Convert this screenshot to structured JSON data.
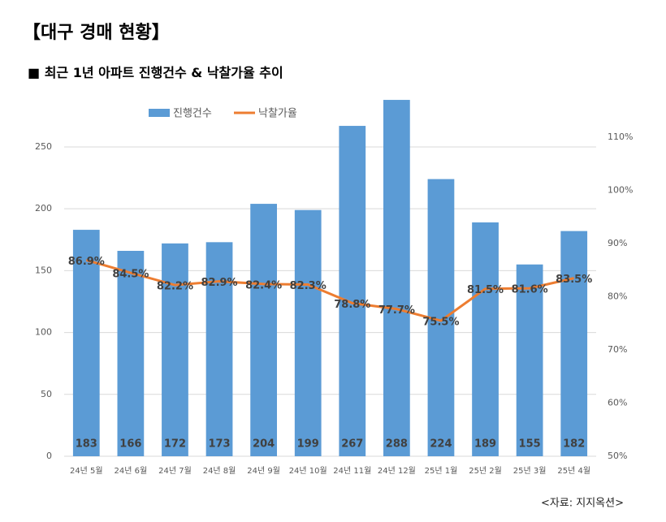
{
  "header": {
    "title": "【대구 경매 현황】",
    "subtitle": "■  최근 1년 아파트 진행건수 & 낙찰가율 추이"
  },
  "chart_data": {
    "type": "bar",
    "categories": [
      "24년 5월",
      "24년 6월",
      "24년 7월",
      "24년 8월",
      "24년 9월",
      "24년 10월",
      "24년 11월",
      "24년 12월",
      "25년 1월",
      "25년 2월",
      "25년 3월",
      "25년 4월"
    ],
    "series": [
      {
        "name": "진행건수",
        "color": "#5b9bd5",
        "type": "bar",
        "values": [
          183,
          166,
          172,
          173,
          204,
          199,
          267,
          288,
          224,
          189,
          155,
          182
        ]
      },
      {
        "name": "낙찰가율",
        "color": "#ed7d31",
        "type": "line",
        "axis": "y2",
        "values": [
          86.9,
          84.5,
          82.2,
          82.9,
          82.4,
          82.3,
          78.8,
          77.7,
          75.5,
          81.5,
          81.6,
          83.5
        ],
        "value_labels": [
          "86.9%",
          "84.5%",
          "82.2%",
          "82.9%",
          "82.4%",
          "82.3%",
          "78.8%",
          "77.7%",
          "75.5%",
          "81.5%",
          "81.6%",
          "83.5%"
        ]
      }
    ],
    "ylim": [
      0,
      290
    ],
    "yticks": [
      0,
      50,
      100,
      150,
      200,
      250
    ],
    "y2lim": [
      50,
      117.5
    ],
    "y2ticks": [
      {
        "value": 50,
        "label": "50%"
      },
      {
        "value": 60,
        "label": "60%"
      },
      {
        "value": 70,
        "label": "70%"
      },
      {
        "value": 80,
        "label": "80%"
      },
      {
        "value": 90,
        "label": "90%"
      },
      {
        "value": 100,
        "label": "100%"
      },
      {
        "value": 110,
        "label": "110%"
      }
    ],
    "grid": true,
    "legend": "top"
  },
  "source": "<자료: 지지옥션>"
}
